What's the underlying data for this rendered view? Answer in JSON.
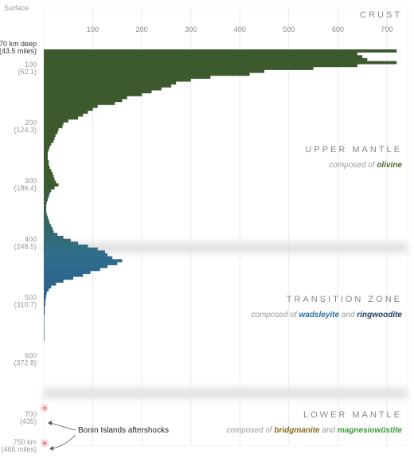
{
  "surface_label": "Surface",
  "crust_label": "CRUST",
  "top_depth_label": "70 km deep",
  "top_depth_miles": "(43.5 miles)",
  "bottom_depth_label": "750 km",
  "bottom_depth_miles": "(466 miles)",
  "annotation": "Bonin Islands aftershocks",
  "layers": {
    "upper": {
      "title": "UPPER MANTLE",
      "prefix": "composed of ",
      "mineral1": "olivine",
      "mineral1_color": "#4a6b2a"
    },
    "transition": {
      "title": "TRANSITION ZONE",
      "prefix": "composed of ",
      "mineral1": "wadsleyite",
      "mid": " and ",
      "mineral2": "ringwoodite",
      "mineral1_color": "#2a6fa6",
      "mineral2_color": "#1f3f6b"
    },
    "lower": {
      "title": "LOWER MANTLE",
      "prefix": "composed of ",
      "mineral1": "bridgmanite",
      "mid": " and ",
      "mineral2": "magnesiowüstite",
      "mineral1_color": "#8a6a1a",
      "mineral2_color": "#3a9a3a"
    }
  },
  "colors": {
    "upper": "#3d5a2e",
    "transition_top": "#2f6e8c",
    "transition_mid": "#2a4f8a",
    "transition_deep": "#1f3566",
    "transition_bottom": "#5a4a25",
    "lower": "#3f8a3a",
    "grid": "#e4e4e4",
    "aftershock": "#e0566b"
  },
  "chart_data": {
    "type": "bar",
    "orientation": "horizontal",
    "x_axis": {
      "ticks": [
        100,
        200,
        300,
        400,
        500,
        600,
        700
      ],
      "range": [
        0,
        730
      ]
    },
    "y_axis": {
      "range_km": [
        70,
        750
      ],
      "ticks": [
        {
          "km": 100,
          "label": "100",
          "miles": "(62.1)"
        },
        {
          "km": 200,
          "label": "200",
          "miles": "(124.3)"
        },
        {
          "km": 300,
          "label": "300",
          "miles": "(186.4)"
        },
        {
          "km": 400,
          "label": "400",
          "miles": "(248.5)"
        },
        {
          "km": 500,
          "label": "500",
          "miles": "(310.7)"
        },
        {
          "km": 600,
          "label": "600",
          "miles": "(372.8)"
        },
        {
          "km": 700,
          "label": "700",
          "miles": "(435)"
        }
      ]
    },
    "boundaries_km": [
      410,
      660
    ],
    "bin_km": 5,
    "values": [
      720,
      640,
      650,
      660,
      720,
      640,
      550,
      450,
      420,
      340,
      300,
      270,
      260,
      240,
      220,
      200,
      170,
      160,
      145,
      110,
      100,
      90,
      80,
      70,
      50,
      40,
      38,
      30,
      28,
      24,
      22,
      20,
      15,
      12,
      10,
      8,
      8,
      8,
      10,
      10,
      12,
      15,
      18,
      20,
      22,
      25,
      30,
      22,
      15,
      12,
      10,
      8,
      6,
      5,
      5,
      5,
      6,
      8,
      10,
      12,
      15,
      18,
      20,
      28,
      40,
      55,
      70,
      90,
      110,
      125,
      130,
      140,
      160,
      150,
      130,
      115,
      95,
      80,
      60,
      40,
      25,
      15,
      10,
      6,
      5,
      4,
      3,
      3,
      2,
      2,
      2,
      1,
      1,
      1,
      1,
      1,
      1,
      1,
      1,
      1,
      0,
      0,
      0,
      0,
      0,
      0,
      0,
      0,
      0,
      0,
      0,
      0,
      0,
      0,
      0,
      0,
      0,
      0,
      0,
      0,
      0,
      0,
      0,
      0,
      0,
      0,
      0,
      0,
      0,
      0,
      0,
      0,
      0,
      0,
      0,
      0,
      0
    ],
    "aftershocks_km": [
      680,
      750
    ]
  }
}
